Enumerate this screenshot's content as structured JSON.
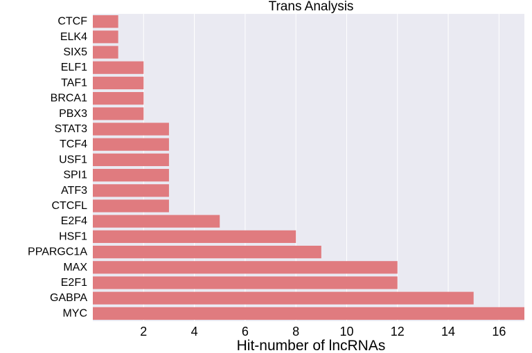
{
  "chart_data": {
    "type": "bar",
    "orientation": "horizontal",
    "title": "Trans Analysis",
    "xlabel": "Hit-number of lncRNAs",
    "ylabel": "",
    "categories": [
      "CTCF",
      "ELK4",
      "SIX5",
      "ELF1",
      "TAF1",
      "BRCA1",
      "PBX3",
      "STAT3",
      "TCF4",
      "USF1",
      "SPI1",
      "ATF3",
      "CTCFL",
      "E2F4",
      "HSF1",
      "PPARGC1A",
      "MAX",
      "E2F1",
      "GABPA",
      "MYC"
    ],
    "values": [
      1,
      1,
      1,
      2,
      2,
      2,
      2,
      3,
      3,
      3,
      3,
      3,
      3,
      5,
      8,
      9,
      12,
      12,
      15,
      17
    ],
    "xlim": [
      0,
      17
    ],
    "xticks": [
      2,
      4,
      6,
      8,
      10,
      12,
      14,
      16
    ],
    "grid": true,
    "bar_color": "#e07b7f",
    "background_color": "#eaeaf2",
    "grid_color": "#ffffff"
  }
}
